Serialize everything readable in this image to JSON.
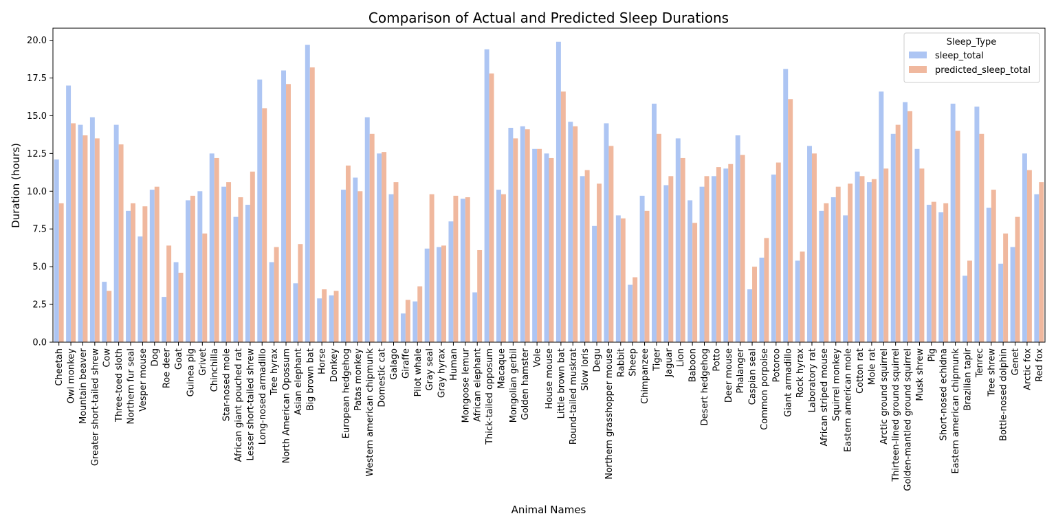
{
  "chart_data": {
    "type": "bar",
    "title": "Comparison of Actual and Predicted Sleep Durations",
    "xlabel": "Animal Names",
    "ylabel": "Duration (hours)",
    "ylim": [
      0,
      20.8
    ],
    "yticks": [
      "0.0",
      "2.5",
      "5.0",
      "7.5",
      "10.0",
      "12.5",
      "15.0",
      "17.5",
      "20.0"
    ],
    "grid": false,
    "legend": {
      "title": "Sleep_Type",
      "placement": "top-right"
    },
    "categories": [
      "Cheetah",
      "Owl monkey",
      "Mountain beaver",
      "Greater short-tailed shrew",
      "Cow",
      "Three-toed sloth",
      "Northern fur seal",
      "Vesper mouse",
      "Dog",
      "Roe deer",
      "Goat",
      "Guinea pig",
      "Grivet",
      "Chinchilla",
      "Star-nosed mole",
      "African giant pouched rat",
      "Lesser short-tailed shrew",
      "Long-nosed armadillo",
      "Tree hyrax",
      "North American Opossum",
      "Asian elephant",
      "Big brown bat",
      "Horse",
      "Donkey",
      "European hedgehog",
      "Patas monkey",
      "Western american chipmunk",
      "Domestic cat",
      "Galago",
      "Giraffe",
      "Pilot whale",
      "Gray seal",
      "Gray hyrax",
      "Human",
      "Mongoose lemur",
      "African elephant",
      "Thick-tailed opposum",
      "Macaque",
      "Mongolian gerbil",
      "Golden hamster",
      "Vole",
      "House mouse",
      "Little brown bat",
      "Round-tailed muskrat",
      "Slow loris",
      "Degu",
      "Northern grasshopper mouse",
      "Rabbit",
      "Sheep",
      "Chimpanzee",
      "Tiger",
      "Jaguar",
      "Lion",
      "Baboon",
      "Desert hedgehog",
      "Potto",
      "Deer mouse",
      "Phalanger",
      "Caspian seal",
      "Common porpoise",
      "Potoroo",
      "Giant armadillo",
      "Rock hyrax",
      "Laboratory rat",
      "African striped mouse",
      "Squirrel monkey",
      "Eastern american mole",
      "Cotton rat",
      "Mole rat",
      "Arctic ground squirrel",
      "Thirteen-lined ground squirrel",
      "Golden-mantled ground squirrel",
      "Musk shrew",
      "Pig",
      "Short-nosed echidna",
      "Eastern american chipmunk",
      "Brazilian tapir",
      "Tenrec",
      "Tree shrew",
      "Bottle-nosed dolphin",
      "Genet",
      "Arctic fox",
      "Red fox"
    ],
    "series": [
      {
        "name": "sleep_total",
        "color": "#adc5f3",
        "values": [
          12.1,
          17.0,
          14.4,
          14.9,
          4.0,
          14.4,
          8.7,
          7.0,
          10.1,
          3.0,
          5.3,
          9.4,
          10.0,
          12.5,
          10.3,
          8.3,
          9.1,
          17.4,
          5.3,
          18.0,
          3.9,
          19.7,
          2.9,
          3.1,
          10.1,
          10.9,
          14.9,
          12.5,
          9.8,
          1.9,
          2.7,
          6.2,
          6.3,
          8.0,
          9.5,
          3.3,
          19.4,
          10.1,
          14.2,
          14.3,
          12.8,
          12.5,
          19.9,
          14.6,
          11.0,
          7.7,
          14.5,
          8.4,
          3.8,
          9.7,
          15.8,
          10.4,
          13.5,
          9.4,
          10.3,
          11.0,
          11.5,
          13.7,
          3.5,
          5.6,
          11.1,
          18.1,
          5.4,
          13.0,
          8.7,
          9.6,
          8.4,
          11.3,
          10.6,
          16.6,
          13.8,
          15.9,
          12.8,
          9.1,
          8.6,
          15.8,
          4.4,
          15.6,
          8.9,
          5.2,
          6.3,
          12.5,
          9.8
        ]
      },
      {
        "name": "predicted_sleep_total",
        "color": "#f0b89e",
        "values": [
          9.2,
          14.5,
          13.7,
          13.5,
          3.4,
          13.1,
          9.2,
          9.0,
          10.3,
          6.4,
          4.6,
          9.7,
          7.2,
          12.2,
          10.6,
          9.6,
          11.3,
          15.5,
          6.3,
          17.1,
          6.5,
          18.2,
          3.5,
          3.4,
          11.7,
          10.0,
          13.8,
          12.6,
          10.6,
          2.8,
          3.7,
          9.8,
          6.4,
          9.7,
          9.6,
          6.1,
          17.8,
          9.8,
          13.5,
          14.1,
          12.8,
          12.2,
          16.6,
          14.3,
          11.4,
          10.5,
          13.0,
          8.2,
          4.3,
          8.7,
          13.8,
          11.0,
          12.2,
          7.9,
          11.0,
          11.6,
          11.8,
          12.4,
          5.0,
          6.9,
          11.9,
          16.1,
          6.0,
          12.5,
          9.2,
          10.3,
          10.5,
          11.0,
          10.8,
          11.5,
          14.4,
          15.3,
          11.5,
          9.3,
          9.2,
          14.0,
          5.4,
          13.8,
          10.1,
          7.2,
          8.3,
          11.4,
          10.6
        ]
      }
    ]
  }
}
